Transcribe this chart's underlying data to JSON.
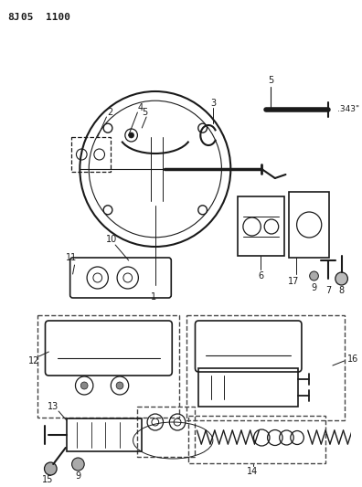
{
  "title": "8J05 1100",
  "bg_color": "#ffffff",
  "line_color": "#1a1a1a",
  "dashed_color": "#444444"
}
